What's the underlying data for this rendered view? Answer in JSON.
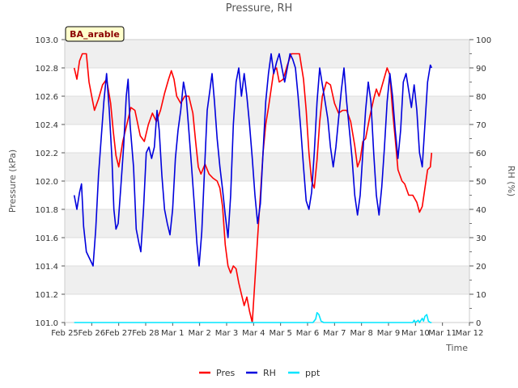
{
  "chart_data": {
    "type": "line",
    "title": "Pressure, RH",
    "xlabel": "Time",
    "ylabel_left": "Pressure (kPa)",
    "ylabel_right": "RH (%)",
    "badge": "BA_arable",
    "ylim_left": [
      101.0,
      103.0
    ],
    "ylim_right": [
      0,
      100
    ],
    "yticks_left": [
      "101.0",
      "101.2",
      "101.4",
      "101.6",
      "101.8",
      "102.0",
      "102.2",
      "102.4",
      "102.6",
      "102.8",
      "103.0"
    ],
    "yticks_right": [
      "0",
      "10",
      "20",
      "30",
      "40",
      "50",
      "60",
      "70",
      "80",
      "90",
      "100"
    ],
    "xticks": [
      "Feb 25",
      "Feb 26",
      "Feb 27",
      "Feb 28",
      "Mar 1",
      "Mar 2",
      "Mar 3",
      "Mar 4",
      "Mar 5",
      "Mar 6",
      "Mar 7",
      "Mar 8",
      "Mar 9",
      "Mar 10",
      "Mar 11",
      "Mar 12"
    ],
    "xlim_days": [
      0,
      15
    ],
    "grid": true,
    "legend_position": "bottom-center",
    "series": [
      {
        "name": "Pres",
        "axis": "left",
        "color": "#ff0000",
        "points": [
          [
            0.35,
            102.8
          ],
          [
            0.45,
            102.72
          ],
          [
            0.55,
            102.85
          ],
          [
            0.65,
            102.9
          ],
          [
            0.8,
            102.9
          ],
          [
            0.9,
            102.7
          ],
          [
            1.0,
            102.6
          ],
          [
            1.1,
            102.5
          ],
          [
            1.25,
            102.58
          ],
          [
            1.4,
            102.68
          ],
          [
            1.55,
            102.72
          ],
          [
            1.7,
            102.55
          ],
          [
            1.8,
            102.35
          ],
          [
            1.9,
            102.18
          ],
          [
            2.0,
            102.1
          ],
          [
            2.15,
            102.28
          ],
          [
            2.3,
            102.4
          ],
          [
            2.45,
            102.52
          ],
          [
            2.6,
            102.5
          ],
          [
            2.8,
            102.32
          ],
          [
            2.95,
            102.28
          ],
          [
            3.1,
            102.4
          ],
          [
            3.25,
            102.48
          ],
          [
            3.4,
            102.42
          ],
          [
            3.55,
            102.5
          ],
          [
            3.7,
            102.62
          ],
          [
            3.85,
            102.72
          ],
          [
            3.95,
            102.78
          ],
          [
            4.05,
            102.72
          ],
          [
            4.15,
            102.6
          ],
          [
            4.3,
            102.55
          ],
          [
            4.45,
            102.6
          ],
          [
            4.6,
            102.6
          ],
          [
            4.75,
            102.48
          ],
          [
            4.85,
            102.28
          ],
          [
            4.95,
            102.1
          ],
          [
            5.05,
            102.05
          ],
          [
            5.2,
            102.12
          ],
          [
            5.35,
            102.05
          ],
          [
            5.5,
            102.02
          ],
          [
            5.65,
            102.0
          ],
          [
            5.75,
            101.95
          ],
          [
            5.85,
            101.82
          ],
          [
            5.95,
            101.55
          ],
          [
            6.05,
            101.4
          ],
          [
            6.15,
            101.35
          ],
          [
            6.25,
            101.4
          ],
          [
            6.35,
            101.38
          ],
          [
            6.45,
            101.28
          ],
          [
            6.55,
            101.2
          ],
          [
            6.65,
            101.12
          ],
          [
            6.75,
            101.18
          ],
          [
            6.85,
            101.08
          ],
          [
            6.95,
            101.0
          ],
          [
            7.05,
            101.3
          ],
          [
            7.15,
            101.6
          ],
          [
            7.25,
            101.9
          ],
          [
            7.35,
            102.2
          ],
          [
            7.45,
            102.4
          ],
          [
            7.55,
            102.52
          ],
          [
            7.65,
            102.65
          ],
          [
            7.75,
            102.78
          ],
          [
            7.85,
            102.8
          ],
          [
            7.95,
            102.7
          ],
          [
            8.1,
            102.72
          ],
          [
            8.25,
            102.82
          ],
          [
            8.4,
            102.9
          ],
          [
            8.55,
            102.9
          ],
          [
            8.7,
            102.9
          ],
          [
            8.85,
            102.72
          ],
          [
            8.95,
            102.5
          ],
          [
            9.05,
            102.2
          ],
          [
            9.15,
            102.0
          ],
          [
            9.25,
            101.95
          ],
          [
            9.35,
            102.15
          ],
          [
            9.45,
            102.42
          ],
          [
            9.55,
            102.6
          ],
          [
            9.7,
            102.7
          ],
          [
            9.85,
            102.68
          ],
          [
            10.0,
            102.55
          ],
          [
            10.15,
            102.48
          ],
          [
            10.3,
            102.5
          ],
          [
            10.45,
            102.5
          ],
          [
            10.6,
            102.42
          ],
          [
            10.75,
            102.25
          ],
          [
            10.85,
            102.1
          ],
          [
            10.95,
            102.15
          ],
          [
            11.05,
            102.28
          ],
          [
            11.15,
            102.3
          ],
          [
            11.3,
            102.45
          ],
          [
            11.45,
            102.58
          ],
          [
            11.55,
            102.65
          ],
          [
            11.65,
            102.6
          ],
          [
            11.8,
            102.7
          ],
          [
            11.95,
            102.8
          ],
          [
            12.05,
            102.75
          ],
          [
            12.15,
            102.5
          ],
          [
            12.25,
            102.3
          ],
          [
            12.35,
            102.08
          ],
          [
            12.5,
            102.0
          ],
          [
            12.6,
            101.98
          ],
          [
            12.75,
            101.9
          ],
          [
            12.9,
            101.9
          ],
          [
            13.05,
            101.85
          ],
          [
            13.15,
            101.78
          ],
          [
            13.25,
            101.82
          ],
          [
            13.35,
            101.95
          ],
          [
            13.45,
            102.08
          ],
          [
            13.55,
            102.1
          ],
          [
            13.6,
            102.2
          ]
        ]
      },
      {
        "name": "RH",
        "axis": "right",
        "color": "#0000dd",
        "points": [
          [
            0.35,
            45
          ],
          [
            0.45,
            40
          ],
          [
            0.55,
            46
          ],
          [
            0.62,
            49
          ],
          [
            0.7,
            34
          ],
          [
            0.8,
            25
          ],
          [
            0.95,
            22
          ],
          [
            1.05,
            20
          ],
          [
            1.15,
            33
          ],
          [
            1.25,
            52
          ],
          [
            1.35,
            65
          ],
          [
            1.45,
            78
          ],
          [
            1.55,
            88
          ],
          [
            1.65,
            75
          ],
          [
            1.75,
            58
          ],
          [
            1.82,
            40
          ],
          [
            1.9,
            33
          ],
          [
            1.98,
            35
          ],
          [
            2.08,
            48
          ],
          [
            2.18,
            62
          ],
          [
            2.28,
            80
          ],
          [
            2.35,
            86
          ],
          [
            2.42,
            70
          ],
          [
            2.55,
            55
          ],
          [
            2.65,
            33
          ],
          [
            2.75,
            28
          ],
          [
            2.82,
            25
          ],
          [
            2.92,
            40
          ],
          [
            3.02,
            60
          ],
          [
            3.12,
            62
          ],
          [
            3.22,
            58
          ],
          [
            3.32,
            62
          ],
          [
            3.42,
            75
          ],
          [
            3.5,
            68
          ],
          [
            3.6,
            52
          ],
          [
            3.7,
            40
          ],
          [
            3.8,
            35
          ],
          [
            3.9,
            31
          ],
          [
            4.0,
            40
          ],
          [
            4.1,
            58
          ],
          [
            4.2,
            68
          ],
          [
            4.3,
            75
          ],
          [
            4.4,
            85
          ],
          [
            4.5,
            80
          ],
          [
            4.6,
            68
          ],
          [
            4.7,
            55
          ],
          [
            4.8,
            42
          ],
          [
            4.9,
            28
          ],
          [
            4.98,
            20
          ],
          [
            5.08,
            32
          ],
          [
            5.18,
            54
          ],
          [
            5.28,
            75
          ],
          [
            5.38,
            82
          ],
          [
            5.46,
            88
          ],
          [
            5.55,
            78
          ],
          [
            5.65,
            65
          ],
          [
            5.75,
            55
          ],
          [
            5.85,
            47
          ],
          [
            5.95,
            38
          ],
          [
            6.05,
            30
          ],
          [
            6.15,
            45
          ],
          [
            6.25,
            70
          ],
          [
            6.35,
            85
          ],
          [
            6.45,
            90
          ],
          [
            6.55,
            80
          ],
          [
            6.65,
            88
          ],
          [
            6.75,
            80
          ],
          [
            6.85,
            70
          ],
          [
            6.95,
            58
          ],
          [
            7.05,
            45
          ],
          [
            7.15,
            35
          ],
          [
            7.25,
            42
          ],
          [
            7.35,
            60
          ],
          [
            7.45,
            78
          ],
          [
            7.55,
            88
          ],
          [
            7.65,
            95
          ],
          [
            7.75,
            88
          ],
          [
            7.85,
            92
          ],
          [
            7.95,
            95
          ],
          [
            8.05,
            90
          ],
          [
            8.15,
            85
          ],
          [
            8.25,
            90
          ],
          [
            8.35,
            95
          ],
          [
            8.45,
            93
          ],
          [
            8.55,
            90
          ],
          [
            8.65,
            80
          ],
          [
            8.75,
            68
          ],
          [
            8.85,
            55
          ],
          [
            8.95,
            43
          ],
          [
            9.05,
            40
          ],
          [
            9.15,
            46
          ],
          [
            9.25,
            60
          ],
          [
            9.35,
            78
          ],
          [
            9.45,
            90
          ],
          [
            9.55,
            84
          ],
          [
            9.65,
            78
          ],
          [
            9.75,
            72
          ],
          [
            9.85,
            62
          ],
          [
            9.95,
            55
          ],
          [
            10.05,
            62
          ],
          [
            10.15,
            72
          ],
          [
            10.25,
            82
          ],
          [
            10.35,
            90
          ],
          [
            10.45,
            78
          ],
          [
            10.55,
            68
          ],
          [
            10.65,
            58
          ],
          [
            10.75,
            45
          ],
          [
            10.85,
            38
          ],
          [
            10.95,
            45
          ],
          [
            11.05,
            60
          ],
          [
            11.15,
            75
          ],
          [
            11.25,
            85
          ],
          [
            11.35,
            78
          ],
          [
            11.45,
            60
          ],
          [
            11.55,
            45
          ],
          [
            11.65,
            38
          ],
          [
            11.75,
            48
          ],
          [
            11.85,
            62
          ],
          [
            11.95,
            78
          ],
          [
            12.05,
            88
          ],
          [
            12.15,
            80
          ],
          [
            12.25,
            68
          ],
          [
            12.35,
            58
          ],
          [
            12.45,
            68
          ],
          [
            12.55,
            85
          ],
          [
            12.65,
            88
          ],
          [
            12.75,
            82
          ],
          [
            12.85,
            76
          ],
          [
            12.95,
            84
          ],
          [
            13.05,
            75
          ],
          [
            13.15,
            60
          ],
          [
            13.25,
            55
          ],
          [
            13.35,
            70
          ],
          [
            13.45,
            85
          ],
          [
            13.55,
            91
          ],
          [
            13.6,
            90
          ]
        ]
      },
      {
        "name": "ppt",
        "axis": "right",
        "color": "#00e5ff",
        "points": [
          [
            0.35,
            0
          ],
          [
            9.2,
            0
          ],
          [
            9.3,
            1.2
          ],
          [
            9.35,
            3.5
          ],
          [
            9.42,
            2.8
          ],
          [
            9.5,
            0.5
          ],
          [
            9.6,
            0
          ],
          [
            12.9,
            0
          ],
          [
            12.95,
            0.8
          ],
          [
            13.0,
            0
          ],
          [
            13.1,
            0.8
          ],
          [
            13.15,
            0
          ],
          [
            13.25,
            1.5
          ],
          [
            13.3,
            0.5
          ],
          [
            13.35,
            2.2
          ],
          [
            13.42,
            2.8
          ],
          [
            13.48,
            0.5
          ],
          [
            13.55,
            0
          ],
          [
            13.6,
            0
          ]
        ]
      }
    ]
  }
}
